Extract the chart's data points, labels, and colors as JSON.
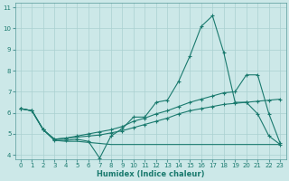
{
  "xlabel": "Humidex (Indice chaleur)",
  "bg_color": "#cce8e8",
  "grid_color": "#aad0d0",
  "line_color": "#1a7a6e",
  "xlim": [
    -0.5,
    23.5
  ],
  "ylim": [
    3.8,
    11.2
  ],
  "xticks": [
    0,
    1,
    2,
    3,
    4,
    5,
    6,
    7,
    8,
    9,
    10,
    11,
    12,
    13,
    14,
    15,
    16,
    17,
    18,
    19,
    20,
    21,
    22,
    23
  ],
  "yticks": [
    4,
    5,
    6,
    7,
    8,
    9,
    10,
    11
  ],
  "series1_x": [
    0,
    1,
    2,
    3,
    4,
    5,
    6,
    7,
    8,
    9,
    10,
    11,
    12,
    13,
    14,
    15,
    16,
    17,
    18,
    19,
    20,
    21,
    22,
    23
  ],
  "series1_y": [
    6.2,
    6.1,
    5.2,
    4.7,
    4.7,
    4.75,
    4.65,
    3.85,
    4.9,
    5.25,
    5.8,
    5.8,
    6.5,
    6.6,
    7.5,
    8.7,
    10.1,
    10.6,
    8.85,
    6.5,
    6.5,
    5.95,
    4.9,
    4.5
  ],
  "series2_x": [
    0,
    1,
    2,
    3,
    4,
    5,
    6,
    7,
    8,
    9,
    10,
    11,
    12,
    13,
    14,
    15,
    16,
    17,
    18,
    19,
    20,
    21,
    22,
    23
  ],
  "series2_y": [
    6.2,
    6.1,
    5.2,
    4.7,
    4.65,
    4.65,
    4.6,
    4.55,
    4.5,
    4.5,
    4.5,
    4.5,
    4.5,
    4.5,
    4.5,
    4.5,
    4.5,
    4.5,
    4.5,
    4.5,
    4.5,
    4.5,
    4.5,
    4.5
  ],
  "series3_x": [
    0,
    1,
    2,
    3,
    4,
    5,
    6,
    7,
    8,
    9,
    10,
    11,
    12,
    13,
    14,
    15,
    16,
    17,
    18,
    19,
    20,
    21,
    22,
    23
  ],
  "series3_y": [
    6.2,
    6.1,
    5.2,
    4.75,
    4.8,
    4.85,
    4.9,
    4.95,
    5.05,
    5.15,
    5.3,
    5.45,
    5.6,
    5.75,
    5.95,
    6.1,
    6.2,
    6.3,
    6.4,
    6.45,
    6.5,
    6.55,
    6.6,
    6.65
  ],
  "series4_x": [
    0,
    1,
    2,
    3,
    4,
    5,
    6,
    7,
    8,
    9,
    10,
    11,
    12,
    13,
    14,
    15,
    16,
    17,
    18,
    19,
    20,
    21,
    22,
    23
  ],
  "series4_y": [
    6.2,
    6.1,
    5.2,
    4.75,
    4.8,
    4.9,
    5.0,
    5.1,
    5.2,
    5.35,
    5.6,
    5.75,
    5.95,
    6.1,
    6.3,
    6.5,
    6.65,
    6.8,
    6.95,
    7.0,
    7.8,
    7.8,
    5.95,
    4.55
  ]
}
